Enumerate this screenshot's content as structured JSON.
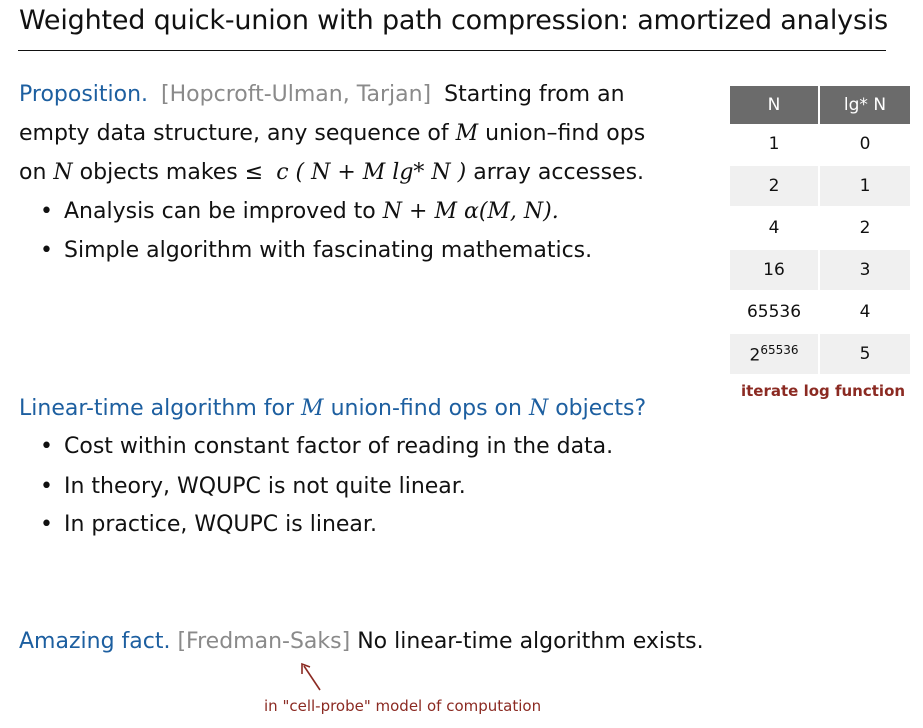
{
  "title": "Weighted quick-union with path compression: amortized analysis",
  "proposition": {
    "label": "Proposition.",
    "citation": "[Hopcroft-Ulman, Tarjan]",
    "text1": "Starting from an",
    "line2": "empty data structure, any sequence of",
    "line2_var": "M",
    "line2_end": "union–find ops",
    "line3_on": "on",
    "line3_var": "N",
    "line3_mid": "objects makes ≤",
    "formula": "c ( N + M lg* N )",
    "line3_end": "array accesses.",
    "bullets": [
      {
        "text": "Analysis can be improved to",
        "math": "N + M α(M, N)."
      },
      {
        "text": "Simple algorithm with fascinating mathematics.",
        "math": ""
      }
    ]
  },
  "table": {
    "headers": [
      "N",
      "lg* N"
    ],
    "rows": [
      {
        "n": "1",
        "lg": "0"
      },
      {
        "n": "2",
        "lg": "1"
      },
      {
        "n": "4",
        "lg": "2"
      },
      {
        "n": "16",
        "lg": "3"
      },
      {
        "n": "65536",
        "lg": "4"
      },
      {
        "n": "2",
        "exp": "65536",
        "lg": "5"
      }
    ],
    "caption": "iterate log function"
  },
  "linear": {
    "q_start": "Linear-time algorithm for",
    "q_var1": "M",
    "q_mid": "union-find ops on",
    "q_var2": "N",
    "q_end": "objects?",
    "bullets": [
      "Cost within constant factor of reading in the data.",
      "In theory, WQUPC is not quite linear.",
      "In practice, WQUPC is linear."
    ]
  },
  "amazing": {
    "label": "Amazing fact.",
    "citation": "[Fredman-Saks]",
    "text": "No linear-time algorithm exists.",
    "note": "in \"cell-probe\" model of computation"
  },
  "colors": {
    "blue": "#1d5fa0",
    "red": "#8b2a22",
    "table_header": "#6b6b6b"
  }
}
